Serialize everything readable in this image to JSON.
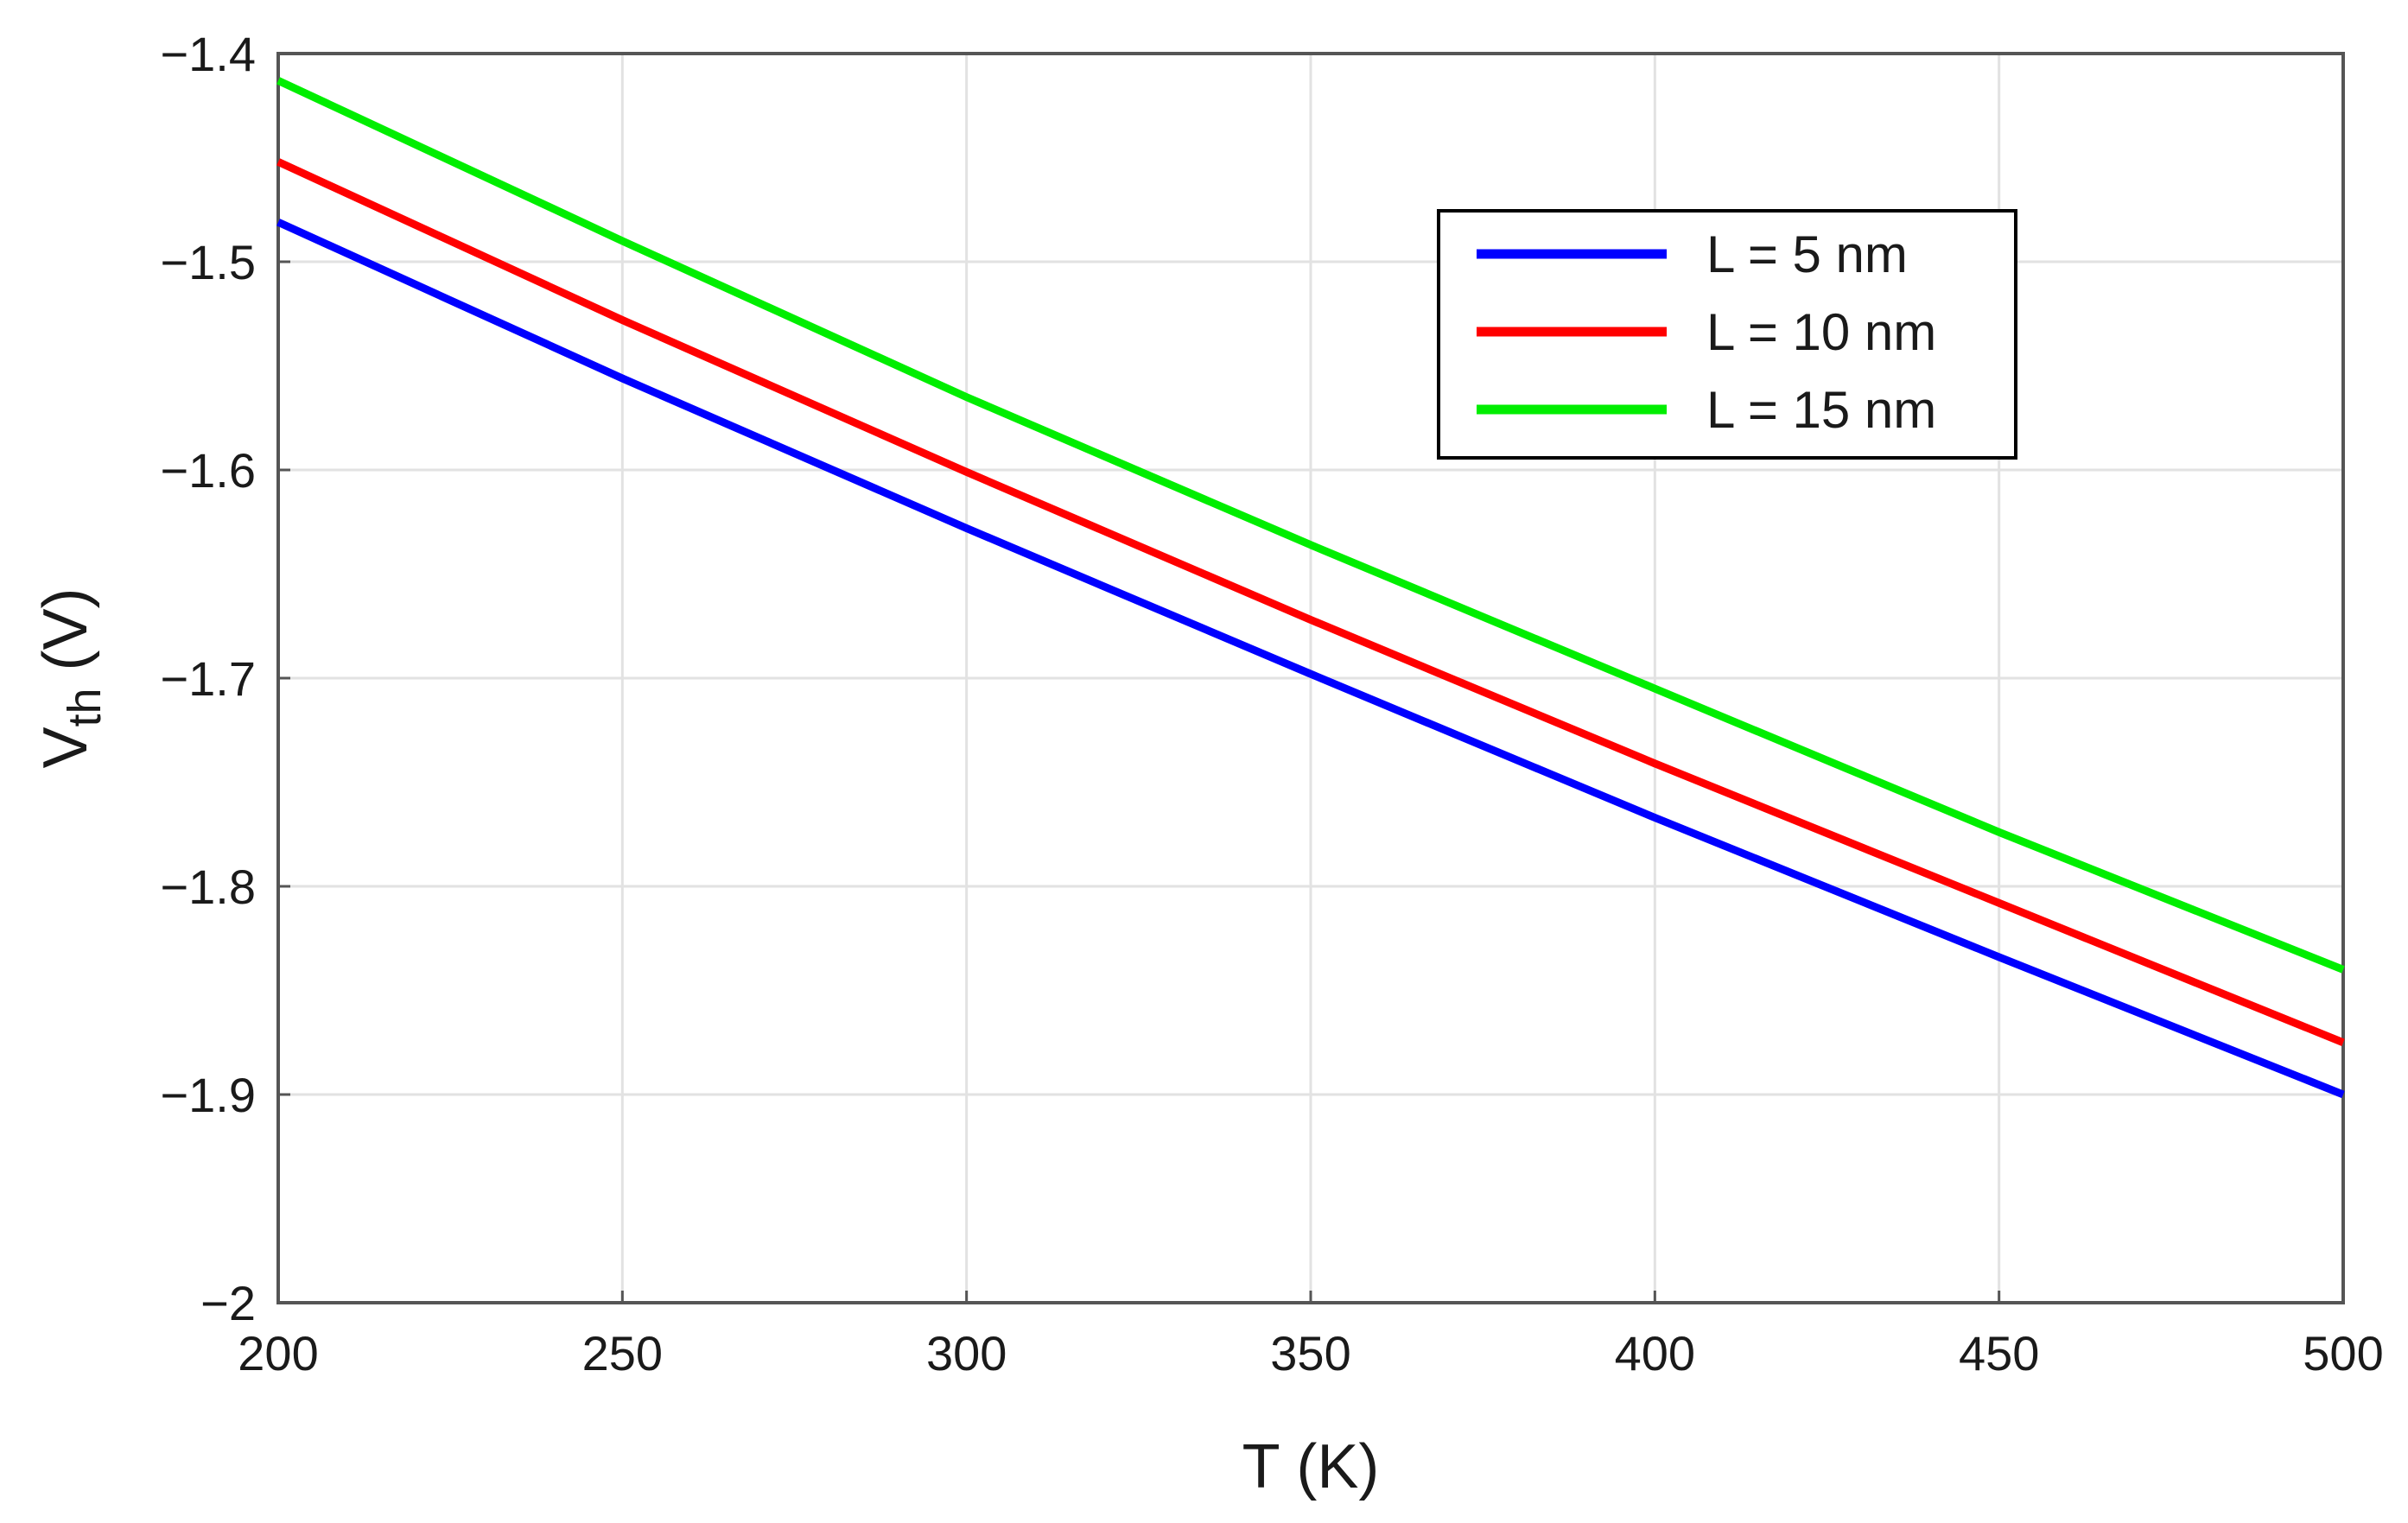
{
  "chart_data": {
    "type": "line",
    "title": "",
    "xlabel": "T (K)",
    "ylabel_main": "V",
    "ylabel_sub": "th",
    "ylabel_suffix": " (V)",
    "xlim": [
      200,
      500
    ],
    "ylim": [
      -2,
      -1.4
    ],
    "xticks": [
      200,
      250,
      300,
      350,
      400,
      450,
      500
    ],
    "yticks": [
      -1.4,
      -1.5,
      -1.6,
      -1.7,
      -1.8,
      -1.9,
      -2
    ],
    "xtick_labels": [
      "200",
      "250",
      "300",
      "350",
      "400",
      "450",
      "500"
    ],
    "ytick_labels": [
      "−1.4",
      "−1.5",
      "−1.6",
      "−1.7",
      "−1.8",
      "−1.9",
      "−2"
    ],
    "grid": true,
    "legend_position": "top-right",
    "series": [
      {
        "name": "L = 5 nm",
        "color": "#0000ff",
        "x": [
          200,
          250,
          300,
          350,
          400,
          450,
          500
        ],
        "values": [
          -1.481,
          -1.556,
          -1.628,
          -1.698,
          -1.767,
          -1.834,
          -1.9
        ]
      },
      {
        "name": "L = 10 nm",
        "color": "#ff0000",
        "x": [
          200,
          250,
          300,
          350,
          400,
          450,
          500
        ],
        "values": [
          -1.452,
          -1.528,
          -1.601,
          -1.672,
          -1.741,
          -1.808,
          -1.875
        ]
      },
      {
        "name": "L = 15 nm",
        "color": "#00ee00",
        "x": [
          200,
          250,
          300,
          350,
          400,
          450,
          500
        ],
        "values": [
          -1.413,
          -1.49,
          -1.565,
          -1.636,
          -1.705,
          -1.774,
          -1.84
        ]
      }
    ]
  }
}
